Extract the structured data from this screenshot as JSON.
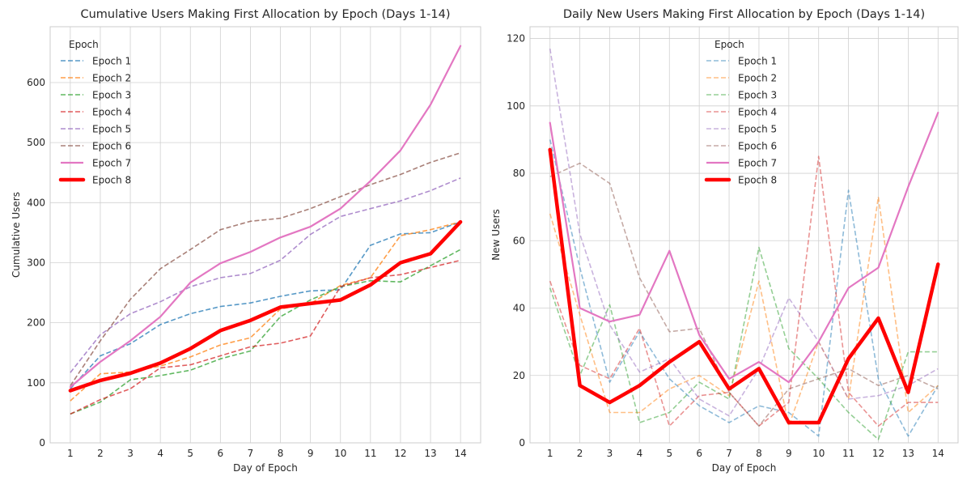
{
  "chart_data": [
    {
      "type": "line",
      "title": "Cumulative Users Making First Allocation by Epoch (Days 1-14)",
      "xlabel": "Day of Epoch",
      "ylabel": "Cumulative Users",
      "x": [
        1,
        2,
        3,
        4,
        5,
        6,
        7,
        8,
        9,
        10,
        11,
        12,
        13,
        14
      ],
      "ylim": [
        0,
        693
      ],
      "yticks": [
        0,
        100,
        200,
        300,
        400,
        500,
        600
      ],
      "grid": true,
      "legend": {
        "title": "Epoch",
        "placement": "top-left"
      },
      "series": [
        {
          "name": "Epoch 1",
          "color": "#1f77b4",
          "style": "dashed",
          "values": [
            90,
            145,
            165,
            197,
            215,
            227,
            233,
            244,
            253,
            255,
            329,
            348,
            350,
            368
          ]
        },
        {
          "name": "Epoch 2",
          "color": "#ff7f0e",
          "style": "dashed",
          "values": [
            70,
            115,
            118,
            128,
            143,
            163,
            175,
            223,
            232,
            262,
            275,
            345,
            355,
            368
          ]
        },
        {
          "name": "Epoch 3",
          "color": "#2ca02c",
          "style": "dashed",
          "values": [
            48,
            68,
            105,
            112,
            121,
            140,
            153,
            210,
            238,
            260,
            270,
            268,
            295,
            322
          ]
        },
        {
          "name": "Epoch 4",
          "color": "#d62728",
          "style": "dashed",
          "values": [
            48,
            72,
            90,
            125,
            130,
            145,
            160,
            166,
            178,
            260,
            275,
            280,
            292,
            304
          ]
        },
        {
          "name": "Epoch 5",
          "color": "#9467bd",
          "style": "dashed",
          "values": [
            117,
            180,
            215,
            235,
            260,
            275,
            282,
            304,
            347,
            377,
            390,
            403,
            420,
            441
          ]
        },
        {
          "name": "Epoch 6",
          "color": "#8c564b",
          "style": "dashed",
          "values": [
            95,
            170,
            239,
            290,
            322,
            355,
            369,
            374,
            390,
            410,
            430,
            447,
            467,
            483
          ]
        },
        {
          "name": "Epoch 7",
          "color": "#e377c2",
          "style": "solid",
          "values": [
            93,
            135,
            170,
            210,
            267,
            299,
            318,
            342,
            360,
            390,
            436,
            487,
            563,
            661
          ]
        },
        {
          "name": "Epoch 8",
          "color": "#ff0000",
          "style": "bold",
          "values": [
            87,
            104,
            116,
            133,
            157,
            187,
            204,
            226,
            232,
            238,
            263,
            300,
            315,
            368
          ]
        }
      ]
    },
    {
      "type": "line",
      "title": "Daily New Users Making First Allocation by Epoch (Days 1-14)",
      "xlabel": "Day of Epoch",
      "ylabel": "New Users",
      "x": [
        1,
        2,
        3,
        4,
        5,
        6,
        7,
        8,
        9,
        10,
        11,
        12,
        13,
        14
      ],
      "ylim": [
        0,
        123.5
      ],
      "yticks": [
        0,
        20,
        40,
        60,
        80,
        100,
        120
      ],
      "grid": true,
      "legend": {
        "title": "Epoch",
        "placement": "top-center"
      },
      "series": [
        {
          "name": "Epoch 1",
          "color": "#1f77b4",
          "style": "dashed",
          "values": [
            90,
            52,
            18,
            33,
            19,
            11,
            6,
            11,
            9,
            2,
            75,
            19,
            2,
            17
          ]
        },
        {
          "name": "Epoch 2",
          "color": "#ff7f0e",
          "style": "dashed",
          "values": [
            68,
            38,
            9,
            9,
            16,
            20,
            14,
            48,
            5,
            30,
            13,
            73,
            9,
            17
          ]
        },
        {
          "name": "Epoch 3",
          "color": "#2ca02c",
          "style": "dashed",
          "values": [
            46,
            20,
            41,
            6,
            9,
            18,
            13,
            58,
            28,
            19,
            9,
            1,
            27,
            27
          ]
        },
        {
          "name": "Epoch 4",
          "color": "#d62728",
          "style": "dashed",
          "values": [
            48,
            23,
            19,
            34,
            5,
            14,
            15,
            5,
            12,
            85,
            15,
            5,
            12,
            12
          ]
        },
        {
          "name": "Epoch 5",
          "color": "#9467bd",
          "style": "dashed",
          "values": [
            117,
            62,
            35,
            21,
            25,
            13,
            8,
            22,
            43,
            30,
            13,
            14,
            17,
            22
          ]
        },
        {
          "name": "Epoch 6",
          "color": "#8c564b",
          "style": "dashed",
          "values": [
            79,
            83,
            77,
            49,
            33,
            34,
            15,
            5,
            16,
            19,
            22,
            17,
            20,
            16
          ]
        },
        {
          "name": "Epoch 7",
          "color": "#e377c2",
          "style": "solid",
          "values": [
            95,
            40,
            36,
            38,
            57,
            32,
            19,
            24,
            18,
            30,
            46,
            52,
            76,
            98
          ]
        },
        {
          "name": "Epoch 8",
          "color": "#ff0000",
          "style": "bold",
          "values": [
            87,
            17,
            12,
            17,
            24,
            30,
            16,
            22,
            6,
            6,
            25,
            37,
            15,
            53
          ]
        }
      ]
    }
  ]
}
